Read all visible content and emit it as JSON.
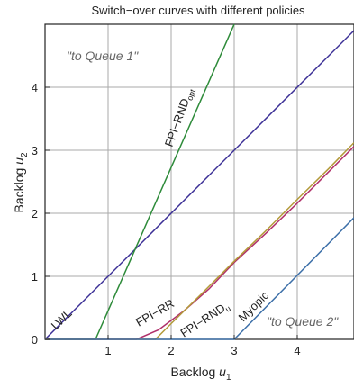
{
  "chart_data": {
    "type": "line",
    "title": "Switch−over curves with different policies",
    "xlabel": {
      "main": "Backlog ",
      "var": "u",
      "sub": "1"
    },
    "ylabel": {
      "main": "Backlog ",
      "var": "u",
      "sub": "2"
    },
    "xlim": [
      0,
      4.9
    ],
    "ylim": [
      0,
      5
    ],
    "x_ticks": [
      1,
      2,
      3,
      4
    ],
    "y_ticks": [
      0,
      1,
      2,
      3,
      4
    ],
    "grid": true,
    "region_labels": {
      "queue1": "\"to Queue 1\"",
      "queue2": "\"to Queue 2\""
    },
    "series": [
      {
        "name": "LWL",
        "color": "#3b2f96",
        "points": [
          [
            0,
            0
          ],
          [
            4.9,
            4.9
          ]
        ]
      },
      {
        "name": "FPI−RND",
        "sub": "opt",
        "color": "#2e8b3a",
        "points": [
          [
            0,
            0
          ],
          [
            0.8,
            0
          ],
          [
            3.0,
            5.0
          ]
        ]
      },
      {
        "name": "FPI−RR",
        "color": "#b0306a",
        "points": [
          [
            0,
            0
          ],
          [
            1.45,
            0
          ],
          [
            1.8,
            0.15
          ],
          [
            2.2,
            0.45
          ],
          [
            2.6,
            0.8
          ],
          [
            3.0,
            1.22
          ],
          [
            3.5,
            1.68
          ],
          [
            4.0,
            2.16
          ],
          [
            4.5,
            2.66
          ],
          [
            4.9,
            3.06
          ]
        ]
      },
      {
        "name": "FPI−RND",
        "sub": "u",
        "color": "#b39a3a",
        "points": [
          [
            0,
            0
          ],
          [
            1.75,
            0
          ],
          [
            2.0,
            0.25
          ],
          [
            2.5,
            0.74
          ],
          [
            3.0,
            1.24
          ],
          [
            3.5,
            1.72
          ],
          [
            4.0,
            2.22
          ],
          [
            4.5,
            2.71
          ],
          [
            4.9,
            3.12
          ]
        ]
      },
      {
        "name": "Myopic",
        "color": "#3c6fa8",
        "points": [
          [
            0,
            0
          ],
          [
            3.0,
            0
          ],
          [
            4.9,
            1.93
          ]
        ]
      }
    ]
  }
}
